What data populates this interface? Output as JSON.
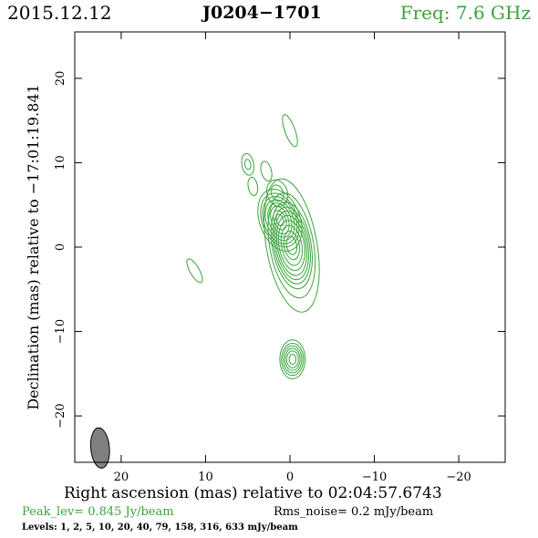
{
  "header": {
    "date": "2015.12.12",
    "source": "J0204−1701",
    "frequency": "Freq: 7.6 GHz"
  },
  "footer": {
    "peak_level": "Peak_lev=  0.845 Jy/beam",
    "rms_noise": "Rms_noise=  0.2 mJy/beam",
    "levels": "Levels:   1,   2,   5,  10,  20,  40,  79, 158, 316, 633 mJy/beam"
  },
  "colors": {
    "contour": "#3aa33a",
    "beam": "#808080",
    "accent_text": "#3aa33a"
  },
  "chart_data": {
    "type": "contour",
    "xlabel": "Right ascension (mas) relative to 02:04:57.6743",
    "ylabel": "Declination (mas) relative to −17:01:19.841",
    "xlim": [
      25.5,
      -25.5
    ],
    "ylim": [
      -25.5,
      25.5
    ],
    "x_ticks": [
      "20",
      "10",
      "0",
      "−10",
      "−20"
    ],
    "x_tick_values": [
      20,
      10,
      0,
      -10,
      -20
    ],
    "y_ticks": [
      "20",
      "10",
      "0",
      "−10",
      "−20"
    ],
    "y_tick_values": [
      20,
      10,
      0,
      -10,
      -20
    ],
    "contour_levels_mJy": [
      1,
      2,
      5,
      10,
      20,
      40,
      79,
      158,
      316,
      633
    ],
    "peak_Jy_per_beam": 0.845,
    "rms_noise_mJy_per_beam": 0.2,
    "beam": {
      "ra_mas": 22.5,
      "dec_mas": -23.8,
      "major_mas": 2.4,
      "minor_mas": 1.1,
      "pa_deg": -5
    },
    "components": [
      {
        "name": "core",
        "ra": -0.2,
        "dec": 0.2,
        "major": [
          8.0,
          6.3,
          5.2,
          4.6,
          4.1,
          3.6,
          3.0,
          2.4,
          1.7,
          1.1
        ],
        "minor": [
          3.0,
          2.6,
          2.3,
          2.1,
          1.9,
          1.7,
          1.5,
          1.2,
          0.9,
          0.6
        ],
        "pa": -10
      },
      {
        "name": "inner-jet",
        "ra": 1.2,
        "dec": 3.2,
        "major": [
          3.8,
          3.3,
          2.9,
          2.5,
          2.1,
          1.7,
          1.2,
          0.7
        ],
        "minor": [
          2.4,
          2.1,
          1.9,
          1.6,
          1.3,
          1.0,
          0.7,
          0.4
        ],
        "pa": -20
      },
      {
        "name": "jet-knot",
        "ra": 1.5,
        "dec": 6.4,
        "major": [
          1.6,
          1.0
        ],
        "minor": [
          1.2,
          0.7
        ],
        "pa": -20
      },
      {
        "name": "knot-a",
        "ra": 5.0,
        "dec": 9.8,
        "major": [
          1.3,
          0.6
        ],
        "minor": [
          0.7,
          0.35
        ],
        "pa": -10
      },
      {
        "name": "knot-b",
        "ra": 2.8,
        "dec": 9.0,
        "major": [
          1.2
        ],
        "minor": [
          0.6
        ],
        "pa": -15
      },
      {
        "name": "knot-c",
        "ra": 4.4,
        "dec": 7.2,
        "major": [
          1.1
        ],
        "minor": [
          0.55
        ],
        "pa": -10
      },
      {
        "name": "northern-feature",
        "ra": 0.0,
        "dec": 13.8,
        "major": [
          2.0
        ],
        "minor": [
          0.6
        ],
        "pa": -20
      },
      {
        "name": "western-feature",
        "ra": 11.3,
        "dec": -2.8,
        "major": [
          1.6
        ],
        "minor": [
          0.55
        ],
        "pa": -30
      },
      {
        "name": "southern-component",
        "ra": -0.3,
        "dec": -13.3,
        "major": [
          2.3,
          1.9,
          1.6,
          1.3,
          1.0,
          0.6
        ],
        "minor": [
          1.5,
          1.3,
          1.1,
          0.9,
          0.7,
          0.4
        ],
        "pa": 0
      }
    ]
  }
}
